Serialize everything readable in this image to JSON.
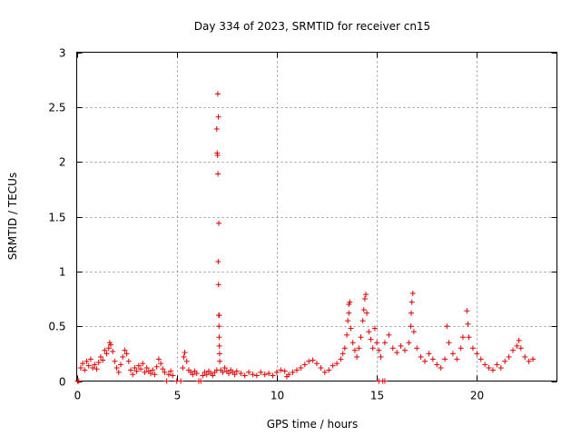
{
  "chart_data": {
    "type": "scatter",
    "title": "Day 334 of 2023, SRMTID for receiver cn15",
    "xlabel": "GPS time / hours",
    "ylabel": "SRMTID / TECUs",
    "xlim": [
      0,
      24
    ],
    "ylim": [
      0,
      3
    ],
    "xticks": [
      0,
      5,
      10,
      15,
      20
    ],
    "yticks": [
      0,
      0.5,
      1,
      1.5,
      2,
      2.5,
      3
    ],
    "grid": true,
    "series": [
      {
        "name": "SRMTID",
        "color": "#e00000",
        "marker": "+",
        "points": [
          [
            0.05,
            0.0
          ],
          [
            0.1,
            0.0
          ],
          [
            4.5,
            0.0
          ],
          [
            5.0,
            0.0
          ],
          [
            5.2,
            0.0
          ],
          [
            6.1,
            0.0
          ],
          [
            6.2,
            0.0
          ],
          [
            15.1,
            0.0
          ],
          [
            15.3,
            0.0
          ],
          [
            15.4,
            0.0
          ],
          [
            0.2,
            0.12
          ],
          [
            0.3,
            0.16
          ],
          [
            0.4,
            0.1
          ],
          [
            0.5,
            0.18
          ],
          [
            0.6,
            0.14
          ],
          [
            0.7,
            0.2
          ],
          [
            0.8,
            0.12
          ],
          [
            0.9,
            0.15
          ],
          [
            1.0,
            0.11
          ],
          [
            1.1,
            0.17
          ],
          [
            1.2,
            0.22
          ],
          [
            1.3,
            0.19
          ],
          [
            1.4,
            0.28
          ],
          [
            1.5,
            0.25
          ],
          [
            1.6,
            0.3
          ],
          [
            1.65,
            0.35
          ],
          [
            1.7,
            0.33
          ],
          [
            1.8,
            0.27
          ],
          [
            1.9,
            0.18
          ],
          [
            2.0,
            0.12
          ],
          [
            2.1,
            0.08
          ],
          [
            2.2,
            0.15
          ],
          [
            2.3,
            0.22
          ],
          [
            2.4,
            0.28
          ],
          [
            2.5,
            0.25
          ],
          [
            2.6,
            0.18
          ],
          [
            2.7,
            0.1
          ],
          [
            2.8,
            0.06
          ],
          [
            2.9,
            0.12
          ],
          [
            3.0,
            0.09
          ],
          [
            3.1,
            0.14
          ],
          [
            3.2,
            0.11
          ],
          [
            3.3,
            0.16
          ],
          [
            3.4,
            0.08
          ],
          [
            3.5,
            0.12
          ],
          [
            3.6,
            0.09
          ],
          [
            3.7,
            0.07
          ],
          [
            3.8,
            0.1
          ],
          [
            3.9,
            0.06
          ],
          [
            4.0,
            0.13
          ],
          [
            4.1,
            0.2
          ],
          [
            4.2,
            0.16
          ],
          [
            4.3,
            0.11
          ],
          [
            4.4,
            0.08
          ],
          [
            4.6,
            0.06
          ],
          [
            4.7,
            0.09
          ],
          [
            4.8,
            0.05
          ],
          [
            5.3,
            0.12
          ],
          [
            5.35,
            0.22
          ],
          [
            5.4,
            0.26
          ],
          [
            5.5,
            0.18
          ],
          [
            5.6,
            0.1
          ],
          [
            5.7,
            0.08
          ],
          [
            5.8,
            0.06
          ],
          [
            5.9,
            0.09
          ],
          [
            6.0,
            0.07
          ],
          [
            6.3,
            0.05
          ],
          [
            6.4,
            0.08
          ],
          [
            6.5,
            0.06
          ],
          [
            6.6,
            0.09
          ],
          [
            6.7,
            0.07
          ],
          [
            6.8,
            0.05
          ],
          [
            6.9,
            0.08
          ],
          [
            7.0,
            0.1
          ],
          [
            7.05,
            2.62
          ],
          [
            7.08,
            2.41
          ],
          [
            7.0,
            2.3
          ],
          [
            7.02,
            2.08
          ],
          [
            7.04,
            2.06
          ],
          [
            7.06,
            1.89
          ],
          [
            7.1,
            1.44
          ],
          [
            7.07,
            1.09
          ],
          [
            7.09,
            0.88
          ],
          [
            7.1,
            0.6
          ],
          [
            7.12,
            0.6
          ],
          [
            7.11,
            0.5
          ],
          [
            7.12,
            0.4
          ],
          [
            7.13,
            0.32
          ],
          [
            7.14,
            0.25
          ],
          [
            7.15,
            0.18
          ],
          [
            7.2,
            0.1
          ],
          [
            7.3,
            0.08
          ],
          [
            7.4,
            0.12
          ],
          [
            7.5,
            0.09
          ],
          [
            7.6,
            0.07
          ],
          [
            7.7,
            0.1
          ],
          [
            7.8,
            0.08
          ],
          [
            7.9,
            0.06
          ],
          [
            8.0,
            0.09
          ],
          [
            8.2,
            0.07
          ],
          [
            8.4,
            0.05
          ],
          [
            8.6,
            0.08
          ],
          [
            8.8,
            0.06
          ],
          [
            9.0,
            0.05
          ],
          [
            9.2,
            0.08
          ],
          [
            9.4,
            0.06
          ],
          [
            9.6,
            0.07
          ],
          [
            9.8,
            0.05
          ],
          [
            10.0,
            0.08
          ],
          [
            10.2,
            0.1
          ],
          [
            10.4,
            0.09
          ],
          [
            10.5,
            0.04
          ],
          [
            10.6,
            0.06
          ],
          [
            10.8,
            0.08
          ],
          [
            11.0,
            0.1
          ],
          [
            11.2,
            0.12
          ],
          [
            11.4,
            0.15
          ],
          [
            11.6,
            0.18
          ],
          [
            11.8,
            0.19
          ],
          [
            12.0,
            0.16
          ],
          [
            12.2,
            0.12
          ],
          [
            12.4,
            0.08
          ],
          [
            12.6,
            0.1
          ],
          [
            12.8,
            0.14
          ],
          [
            13.0,
            0.16
          ],
          [
            13.2,
            0.2
          ],
          [
            13.3,
            0.25
          ],
          [
            13.4,
            0.3
          ],
          [
            13.5,
            0.42
          ],
          [
            13.55,
            0.55
          ],
          [
            13.6,
            0.62
          ],
          [
            13.6,
            0.7
          ],
          [
            13.65,
            0.72
          ],
          [
            13.7,
            0.48
          ],
          [
            13.8,
            0.35
          ],
          [
            13.9,
            0.28
          ],
          [
            14.0,
            0.22
          ],
          [
            14.1,
            0.3
          ],
          [
            14.2,
            0.4
          ],
          [
            14.3,
            0.55
          ],
          [
            14.35,
            0.65
          ],
          [
            14.4,
            0.75
          ],
          [
            14.45,
            0.79
          ],
          [
            14.5,
            0.62
          ],
          [
            14.6,
            0.45
          ],
          [
            14.7,
            0.38
          ],
          [
            14.8,
            0.3
          ],
          [
            14.9,
            0.48
          ],
          [
            15.0,
            0.35
          ],
          [
            15.1,
            0.28
          ],
          [
            15.2,
            0.22
          ],
          [
            15.4,
            0.35
          ],
          [
            15.6,
            0.42
          ],
          [
            15.8,
            0.3
          ],
          [
            16.0,
            0.26
          ],
          [
            16.2,
            0.32
          ],
          [
            16.4,
            0.28
          ],
          [
            16.6,
            0.35
          ],
          [
            16.7,
            0.5
          ],
          [
            16.72,
            0.62
          ],
          [
            16.75,
            0.72
          ],
          [
            16.8,
            0.8
          ],
          [
            16.85,
            0.45
          ],
          [
            17.0,
            0.3
          ],
          [
            17.2,
            0.22
          ],
          [
            17.4,
            0.18
          ],
          [
            17.6,
            0.25
          ],
          [
            17.8,
            0.2
          ],
          [
            18.0,
            0.15
          ],
          [
            18.2,
            0.12
          ],
          [
            18.4,
            0.2
          ],
          [
            18.5,
            0.5
          ],
          [
            18.6,
            0.35
          ],
          [
            18.8,
            0.25
          ],
          [
            19.0,
            0.2
          ],
          [
            19.2,
            0.3
          ],
          [
            19.3,
            0.4
          ],
          [
            19.5,
            0.64
          ],
          [
            19.55,
            0.52
          ],
          [
            19.6,
            0.4
          ],
          [
            19.8,
            0.3
          ],
          [
            20.0,
            0.25
          ],
          [
            20.2,
            0.2
          ],
          [
            20.4,
            0.15
          ],
          [
            20.6,
            0.12
          ],
          [
            20.8,
            0.1
          ],
          [
            21.0,
            0.15
          ],
          [
            21.2,
            0.12
          ],
          [
            21.4,
            0.18
          ],
          [
            21.6,
            0.22
          ],
          [
            21.8,
            0.28
          ],
          [
            22.0,
            0.32
          ],
          [
            22.1,
            0.37
          ],
          [
            22.2,
            0.3
          ],
          [
            22.4,
            0.22
          ],
          [
            22.6,
            0.18
          ],
          [
            22.8,
            0.2
          ]
        ]
      }
    ]
  }
}
